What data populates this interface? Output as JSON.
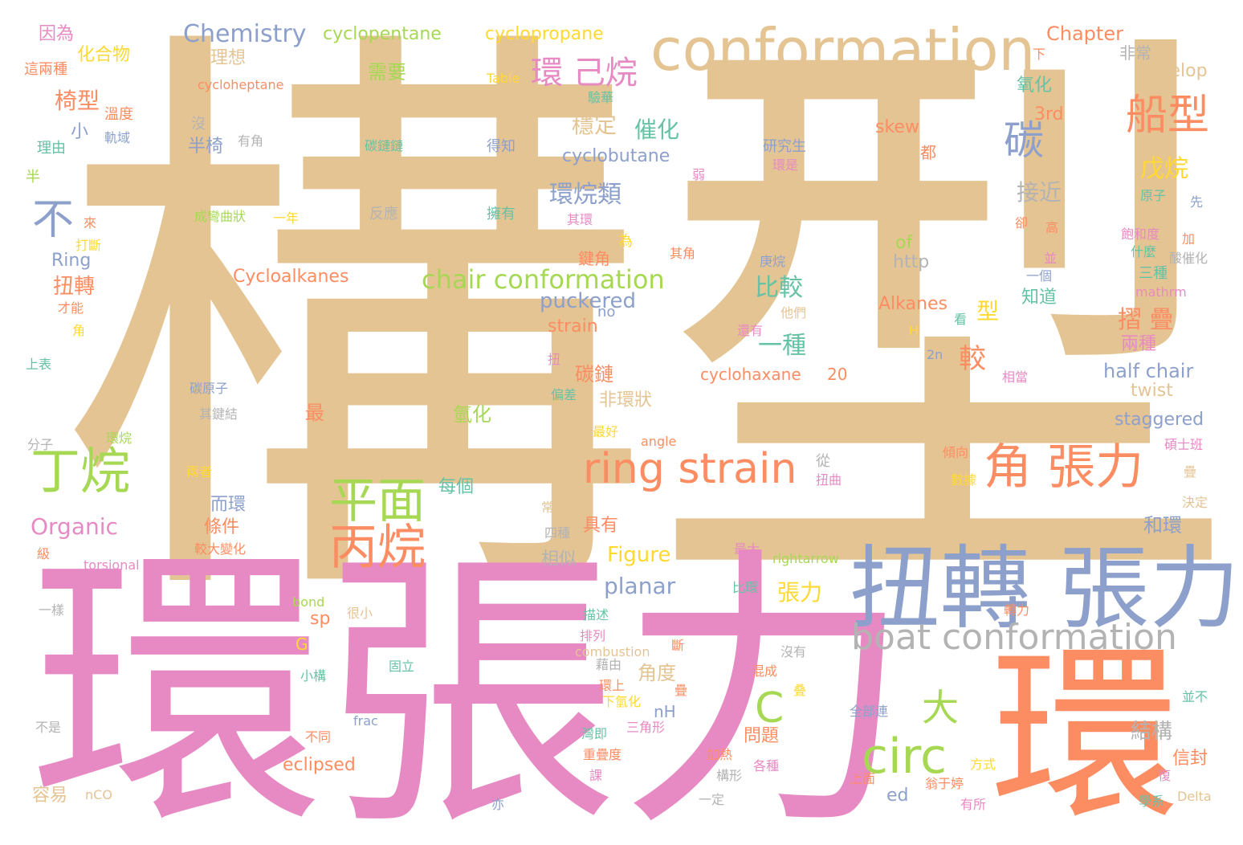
{
  "words": [
    {
      "text": "構型",
      "color": "#e5c494"
    },
    {
      "text": "環張力",
      "color": "#e78ac3"
    },
    {
      "text": "環",
      "color": "#fc8d62"
    },
    {
      "text": "扭轉 張力",
      "color": "#8da0cb"
    },
    {
      "text": "conformation",
      "color": "#e5c494"
    },
    {
      "text": "ring strain",
      "color": "#fc8d62"
    },
    {
      "text": "boat conformation",
      "color": "#b3b3b3"
    },
    {
      "text": "角 張力",
      "color": "#fc8d62"
    },
    {
      "text": "circ",
      "color": "#a6d854"
    },
    {
      "text": "丁烷",
      "color": "#a6d854"
    },
    {
      "text": "平面",
      "color": "#a6d854"
    },
    {
      "text": "丙烷",
      "color": "#fc8d62"
    },
    {
      "text": "船型",
      "color": "#fc8d62"
    },
    {
      "text": "碳",
      "color": "#8da0cb"
    },
    {
      "text": "不",
      "color": "#8da0cb"
    },
    {
      "text": "chair conformation",
      "color": "#a6d854"
    },
    {
      "text": "環 己烷",
      "color": "#e78ac3"
    },
    {
      "text": "C",
      "color": "#a6d854"
    },
    {
      "text": "大",
      "color": "#a6d854"
    },
    {
      "text": "Chemistry",
      "color": "#8da0cb"
    },
    {
      "text": "cyclopentane",
      "color": "#a6d854"
    },
    {
      "text": "cyclopropane",
      "color": "#ffd92f"
    },
    {
      "text": "Chapter",
      "color": "#fc8d62"
    },
    {
      "text": "因為",
      "color": "#e78ac3"
    },
    {
      "text": "化合物",
      "color": "#ffd92f"
    },
    {
      "text": "理想",
      "color": "#e5c494"
    },
    {
      "text": "需要",
      "color": "#a6d854"
    },
    {
      "text": "非常",
      "color": "#b3b3b3"
    },
    {
      "text": "envelop",
      "color": "#e5c494"
    },
    {
      "text": "這兩種",
      "color": "#fc8d62"
    },
    {
      "text": "cycloheptane",
      "color": "#fc8d62"
    },
    {
      "text": "Table",
      "color": "#ffd92f"
    },
    {
      "text": "驗華",
      "color": "#66c2a5"
    },
    {
      "text": "氧化",
      "color": "#66c2a5"
    },
    {
      "text": "椅型",
      "color": "#fc8d62"
    },
    {
      "text": "溫度",
      "color": "#fc8d62"
    },
    {
      "text": "穩定",
      "color": "#e5c494"
    },
    {
      "text": "催化",
      "color": "#66c2a5"
    },
    {
      "text": "3rd",
      "color": "#fc8d62"
    },
    {
      "text": "小",
      "color": "#8da0cb"
    },
    {
      "text": "沒",
      "color": "#b3b3b3"
    },
    {
      "text": "有角",
      "color": "#b3b3b3"
    },
    {
      "text": "半椅",
      "color": "#8da0cb"
    },
    {
      "text": "碳鏈鏈",
      "color": "#66c2a5"
    },
    {
      "text": "得知",
      "color": "#8da0cb"
    },
    {
      "text": "cyclobutane",
      "color": "#8da0cb"
    },
    {
      "text": "研究生",
      "color": "#8da0cb"
    },
    {
      "text": "skew",
      "color": "#fc8d62"
    },
    {
      "text": "都",
      "color": "#fc8d62"
    },
    {
      "text": "理由",
      "color": "#66c2a5"
    },
    {
      "text": "軌域",
      "color": "#8da0cb"
    },
    {
      "text": "環是",
      "color": "#e78ac3"
    },
    {
      "text": "弱",
      "color": "#e78ac3"
    },
    {
      "text": "這也",
      "color": "#e5c494"
    },
    {
      "text": "戊烷",
      "color": "#ffd92f"
    },
    {
      "text": "環烷類",
      "color": "#8da0cb"
    },
    {
      "text": "接近",
      "color": "#b3b3b3"
    },
    {
      "text": "原子",
      "color": "#66c2a5"
    },
    {
      "text": "半",
      "color": "#a6d854"
    },
    {
      "text": "先",
      "color": "#8da0cb"
    },
    {
      "text": "成彎曲狀",
      "color": "#a6d854"
    },
    {
      "text": "一年",
      "color": "#ffd92f"
    },
    {
      "text": "反應",
      "color": "#b3b3b3"
    },
    {
      "text": "擁有",
      "color": "#66c2a5"
    },
    {
      "text": "其環",
      "color": "#e78ac3"
    },
    {
      "text": "卻",
      "color": "#fc8d62"
    },
    {
      "text": "高",
      "color": "#fc8d62"
    },
    {
      "text": "來",
      "color": "#fc8d62"
    },
    {
      "text": "打斷",
      "color": "#ffd92f"
    },
    {
      "text": "of",
      "color": "#a6d854"
    },
    {
      "text": "飽和度",
      "color": "#e78ac3"
    },
    {
      "text": "加",
      "color": "#fc8d62"
    },
    {
      "text": "為",
      "color": "#ffd92f"
    },
    {
      "text": "Ring",
      "color": "#8da0cb"
    },
    {
      "text": "鍵角",
      "color": "#fc8d62"
    },
    {
      "text": "其角",
      "color": "#fc8d62"
    },
    {
      "text": "庚烷",
      "color": "#8da0cb"
    },
    {
      "text": "http",
      "color": "#b3b3b3"
    },
    {
      "text": "並",
      "color": "#e78ac3"
    },
    {
      "text": "什麼",
      "color": "#66c2a5"
    },
    {
      "text": "酸催化",
      "color": "#b3b3b3"
    },
    {
      "text": "Cycloalkanes",
      "color": "#fc8d62"
    },
    {
      "text": "一個",
      "color": "#8da0cb"
    },
    {
      "text": "三種",
      "color": "#66c2a5"
    },
    {
      "text": "扭轉",
      "color": "#fc8d62"
    },
    {
      "text": "比較",
      "color": "#66c2a5"
    },
    {
      "text": "puckered",
      "color": "#8da0cb"
    },
    {
      "text": "知道",
      "color": "#66c2a5"
    },
    {
      "text": "mathrm",
      "color": "#e78ac3"
    },
    {
      "text": "才能",
      "color": "#fc8d62"
    },
    {
      "text": "no",
      "color": "#8da0cb"
    },
    {
      "text": "他們",
      "color": "#e5c494"
    },
    {
      "text": "Alkanes",
      "color": "#fc8d62"
    },
    {
      "text": "型",
      "color": "#ffd92f"
    },
    {
      "text": "摺 疊",
      "color": "#fc8d62"
    },
    {
      "text": "看",
      "color": "#66c2a5"
    },
    {
      "text": "角",
      "color": "#ffd92f"
    },
    {
      "text": "strain",
      "color": "#fc8d62"
    },
    {
      "text": "還有",
      "color": "#e78ac3"
    },
    {
      "text": "H",
      "color": "#ffd92f"
    },
    {
      "text": "一種",
      "color": "#66c2a5"
    },
    {
      "text": "較",
      "color": "#fc8d62"
    },
    {
      "text": "兩種",
      "color": "#e78ac3"
    },
    {
      "text": "上表",
      "color": "#66c2a5"
    },
    {
      "text": "扭",
      "color": "#e78ac3"
    },
    {
      "text": "2n",
      "color": "#8da0cb"
    },
    {
      "text": "碳鏈",
      "color": "#fc8d62"
    },
    {
      "text": "cyclohaxane",
      "color": "#fc8d62"
    },
    {
      "text": "20",
      "color": "#fc8d62"
    },
    {
      "text": "相當",
      "color": "#e78ac3"
    },
    {
      "text": "half chair",
      "color": "#8da0cb"
    },
    {
      "text": "碳原子",
      "color": "#8da0cb"
    },
    {
      "text": "偏差",
      "color": "#66c2a5"
    },
    {
      "text": "非環狀",
      "color": "#e5c494"
    },
    {
      "text": "twist",
      "color": "#e5c494"
    },
    {
      "text": "其鍵結",
      "color": "#b3b3b3"
    },
    {
      "text": "最",
      "color": "#fc8d62"
    },
    {
      "text": "氫化",
      "color": "#a6d854"
    },
    {
      "text": "staggered",
      "color": "#8da0cb"
    },
    {
      "text": "分子",
      "color": "#b3b3b3"
    },
    {
      "text": "環烷",
      "color": "#a6d854"
    },
    {
      "text": "最好",
      "color": "#ffd92f"
    },
    {
      "text": "angle",
      "color": "#fc8d62"
    },
    {
      "text": "碩士班",
      "color": "#e78ac3"
    },
    {
      "text": "從",
      "color": "#b3b3b3"
    },
    {
      "text": "傾向",
      "color": "#fc8d62"
    },
    {
      "text": "疊",
      "color": "#e5c494"
    },
    {
      "text": "兩者",
      "color": "#ffd92f"
    },
    {
      "text": "扭曲",
      "color": "#e78ac3"
    },
    {
      "text": "數據",
      "color": "#ffd92f"
    },
    {
      "text": "而環",
      "color": "#8da0cb"
    },
    {
      "text": "每個",
      "color": "#66c2a5"
    },
    {
      "text": "決定",
      "color": "#e5c494"
    },
    {
      "text": "條件",
      "color": "#fc8d62"
    },
    {
      "text": "常見",
      "color": "#e5c494"
    },
    {
      "text": "具有",
      "color": "#fc8d62"
    },
    {
      "text": "和環",
      "color": "#8da0cb"
    },
    {
      "text": "Organic",
      "color": "#e78ac3"
    },
    {
      "text": "四種",
      "color": "#b3b3b3"
    },
    {
      "text": "較大變化",
      "color": "#fc8d62"
    },
    {
      "text": "最大",
      "color": "#e78ac3"
    },
    {
      "text": "級",
      "color": "#fc8d62"
    },
    {
      "text": "Figure",
      "color": "#ffd92f"
    },
    {
      "text": "rightarrow",
      "color": "#a6d854"
    },
    {
      "text": "相似",
      "color": "#b3b3b3"
    },
    {
      "text": "torsional",
      "color": "#e78ac3"
    },
    {
      "text": "planar",
      "color": "#8da0cb"
    },
    {
      "text": "比環",
      "color": "#66c2a5"
    },
    {
      "text": "張力",
      "color": "#ffd92f"
    },
    {
      "text": "bond",
      "color": "#a6d854"
    },
    {
      "text": "一樣",
      "color": "#b3b3b3"
    },
    {
      "text": "很小",
      "color": "#e5c494"
    },
    {
      "text": "描述",
      "color": "#66c2a5"
    },
    {
      "text": "轉力",
      "color": "#fc8d62"
    },
    {
      "text": "sp",
      "color": "#fc8d62"
    },
    {
      "text": "排列",
      "color": "#e78ac3"
    },
    {
      "text": "combustion",
      "color": "#e5c494"
    },
    {
      "text": "G",
      "color": "#ffd92f"
    },
    {
      "text": "斷",
      "color": "#fc8d62"
    },
    {
      "text": "藉由",
      "color": "#b3b3b3"
    },
    {
      "text": "沒有",
      "color": "#b3b3b3"
    },
    {
      "text": "固立",
      "color": "#66c2a5"
    },
    {
      "text": "角度",
      "color": "#e5c494"
    },
    {
      "text": "小構",
      "color": "#66c2a5"
    },
    {
      "text": "環上",
      "color": "#fc8d62"
    },
    {
      "text": "混成",
      "color": "#fc8d62"
    },
    {
      "text": "叠",
      "color": "#ffd92f"
    },
    {
      "text": "疊",
      "color": "#fc8d62"
    },
    {
      "text": "下氫化",
      "color": "#ffd92f"
    },
    {
      "text": "frac",
      "color": "#8da0cb"
    },
    {
      "text": "nH",
      "color": "#8da0cb"
    },
    {
      "text": "全部連",
      "color": "#8da0cb"
    },
    {
      "text": "並不",
      "color": "#66c2a5"
    },
    {
      "text": "不是",
      "color": "#b3b3b3"
    },
    {
      "text": "不同",
      "color": "#fc8d62"
    },
    {
      "text": "三角形",
      "color": "#e78ac3"
    },
    {
      "text": "問題",
      "color": "#fc8d62"
    },
    {
      "text": "結構",
      "color": "#b3b3b3"
    },
    {
      "text": "灣即",
      "color": "#66c2a5"
    },
    {
      "text": "重疊度",
      "color": "#fc8d62"
    },
    {
      "text": "加熱",
      "color": "#fc8d62"
    },
    {
      "text": "各種",
      "color": "#e78ac3"
    },
    {
      "text": "信封",
      "color": "#fc8d62"
    },
    {
      "text": "eclipsed",
      "color": "#fc8d62"
    },
    {
      "text": "方式",
      "color": "#ffd92f"
    },
    {
      "text": "課",
      "color": "#e78ac3"
    },
    {
      "text": "構形",
      "color": "#b3b3b3"
    },
    {
      "text": "上面",
      "color": "#fc8d62"
    },
    {
      "text": "翁于婷",
      "color": "#fc8d62"
    },
    {
      "text": "復",
      "color": "#e78ac3"
    },
    {
      "text": "容易",
      "color": "#e5c494"
    },
    {
      "text": "nCO",
      "color": "#e5c494"
    },
    {
      "text": "亦",
      "color": "#8da0cb"
    },
    {
      "text": "一定",
      "color": "#b3b3b3"
    },
    {
      "text": "ed",
      "color": "#8da0cb"
    },
    {
      "text": "有所",
      "color": "#e78ac3"
    },
    {
      "text": "學系",
      "color": "#66c2a5"
    },
    {
      "text": "Delta",
      "color": "#e5c494"
    },
    {
      "text": "下",
      "color": "#fc8d62"
    }
  ]
}
